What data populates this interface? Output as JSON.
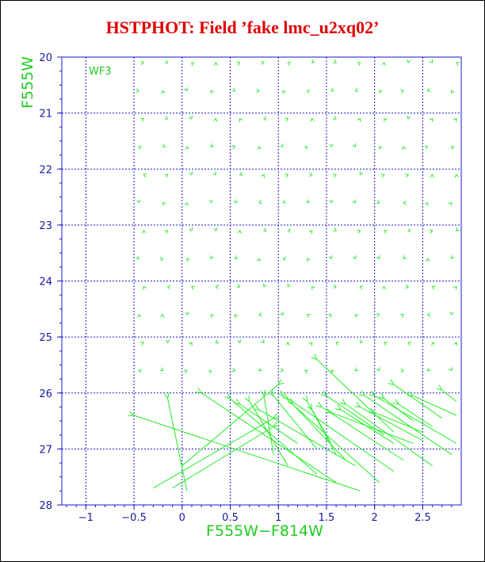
{
  "chart_data": {
    "type": "vector-field",
    "title": "HSTPHOT: Field ’fake lmc_u2xq02’",
    "xlabel": "F555W−F814W",
    "ylabel": "F555W",
    "panel_label": "WF3",
    "xlim": [
      -1.25,
      2.9
    ],
    "ylim": [
      28,
      20
    ],
    "x_ticks": [
      -1,
      -0.5,
      0,
      0.5,
      1,
      1.5,
      2,
      2.5
    ],
    "x_tick_labels": [
      "−1",
      "−0.5",
      "0",
      "0.5",
      "1",
      "1.5",
      "2",
      "2.5"
    ],
    "y_ticks": [
      20,
      21,
      22,
      23,
      24,
      25,
      26,
      27,
      28
    ],
    "y_tick_labels": [
      "20",
      "21",
      "22",
      "23",
      "24",
      "25",
      "26",
      "27",
      "28"
    ],
    "grid": true,
    "colors": {
      "title": "#e00000",
      "axes": "#1a1acc",
      "data": "#22ee22"
    },
    "short_vectors_note": "small symbols drawn at grid points on a 0.25 mag step; arrows point from input to recovered position",
    "grid_field": {
      "x_start": -0.5,
      "x_step": 0.25,
      "x_count": 14,
      "y_start": 20.05,
      "y_step": 0.5,
      "y_count": 12
    },
    "long_vectors": [
      {
        "x0": -0.3,
        "y0": 27.7,
        "x1": 0.95,
        "y1": 26.45
      },
      {
        "x0": 0.05,
        "y0": 27.75,
        "x1": -0.15,
        "y1": 26.1
      },
      {
        "x0": -0.1,
        "y0": 27.7,
        "x1": 0.95,
        "y1": 26.6
      },
      {
        "x0": 1.85,
        "y0": 27.75,
        "x1": -0.5,
        "y1": 26.4
      },
      {
        "x0": 1.6,
        "y0": 27.6,
        "x1": 0.2,
        "y1": 26.0
      },
      {
        "x0": 1.4,
        "y0": 27.45,
        "x1": 0.5,
        "y1": 26.1
      },
      {
        "x0": 0.0,
        "y0": 27.3,
        "x1": 1.0,
        "y1": 25.85
      },
      {
        "x0": 1.1,
        "y0": 27.3,
        "x1": 0.7,
        "y1": 26.15
      },
      {
        "x0": 0.95,
        "y0": 27.1,
        "x1": 0.85,
        "y1": 26.05
      },
      {
        "x0": 1.4,
        "y0": 27.0,
        "x1": 0.95,
        "y1": 26.05
      },
      {
        "x0": 1.2,
        "y0": 26.9,
        "x1": 0.6,
        "y1": 26.2
      },
      {
        "x0": 2.05,
        "y0": 27.6,
        "x1": 1.05,
        "y1": 26.05
      },
      {
        "x0": 1.8,
        "y0": 27.3,
        "x1": 0.8,
        "y1": 26.3
      },
      {
        "x0": 2.2,
        "y0": 27.4,
        "x1": 1.1,
        "y1": 26.1
      },
      {
        "x0": 1.7,
        "y0": 27.2,
        "x1": 1.15,
        "y1": 26.2
      },
      {
        "x0": 1.6,
        "y0": 27.1,
        "x1": 1.3,
        "y1": 26.15
      },
      {
        "x0": 1.55,
        "y0": 26.9,
        "x1": 1.35,
        "y1": 26.3
      },
      {
        "x0": 2.3,
        "y0": 27.2,
        "x1": 1.45,
        "y1": 26.25
      },
      {
        "x0": 2.4,
        "y0": 26.9,
        "x1": 1.55,
        "y1": 26.35
      },
      {
        "x0": 2.6,
        "y0": 27.3,
        "x1": 1.7,
        "y1": 26.2
      },
      {
        "x0": 2.8,
        "y0": 27.1,
        "x1": 1.9,
        "y1": 26.05
      },
      {
        "x0": 2.5,
        "y0": 26.85,
        "x1": 1.85,
        "y1": 26.25
      },
      {
        "x0": 2.85,
        "y0": 26.9,
        "x1": 2.0,
        "y1": 26.05
      },
      {
        "x0": 2.5,
        "y0": 26.7,
        "x1": 2.0,
        "y1": 26.35
      },
      {
        "x0": 2.2,
        "y0": 26.9,
        "x1": 1.65,
        "y1": 26.3
      },
      {
        "x0": 2.1,
        "y0": 26.75,
        "x1": 1.5,
        "y1": 26.05
      },
      {
        "x0": 2.4,
        "y0": 26.5,
        "x1": 2.1,
        "y1": 26.1
      },
      {
        "x0": 2.6,
        "y0": 26.6,
        "x1": 2.25,
        "y1": 26.2
      },
      {
        "x0": 2.7,
        "y0": 26.45,
        "x1": 2.2,
        "y1": 25.85
      },
      {
        "x0": 2.85,
        "y0": 26.4,
        "x1": 2.4,
        "y1": 26.05
      },
      {
        "x0": 2.2,
        "y0": 26.7,
        "x1": 1.4,
        "y1": 25.4
      },
      {
        "x0": 2.85,
        "y0": 26.15,
        "x1": 2.7,
        "y1": 25.95
      }
    ]
  }
}
